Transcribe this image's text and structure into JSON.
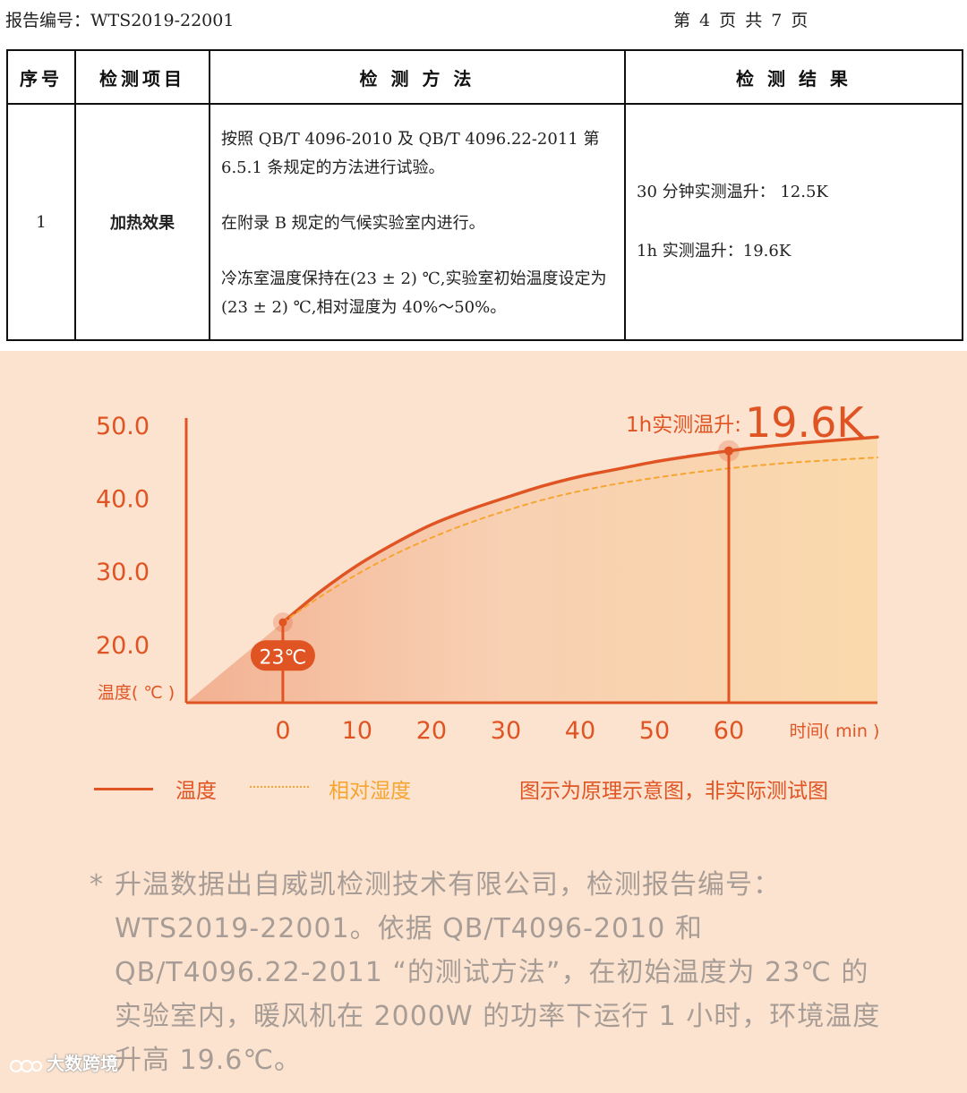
{
  "report": {
    "report_number": "报告编号：WTS2019-22001",
    "page_info": "第 4 页 共 7 页",
    "columns": [
      "序号",
      "检测项目",
      "检 测 方 法",
      "检 测 结 果"
    ],
    "row": {
      "no": "1",
      "item": "加热效果",
      "method": [
        "按照 QB/T 4096-2010 及 QB/T 4096.22-2011 第 6.5.1 条规定的方法进行试验。",
        "在附录 B 规定的气候实验室内进行。",
        "冷冻室温度保持在(23 ± 2) ℃,实验室初始温度设定为(23 ± 2) ℃,相对湿度为 40%～50%。"
      ],
      "results": [
        "30 分钟实测温升： 12.5K",
        "1h 实测温升：19.6K"
      ]
    }
  },
  "chart_data": {
    "type": "line",
    "xlabel": "时间( min )",
    "ylabel": "温度( ℃ )",
    "x_ticks": [
      0,
      10,
      20,
      30,
      40,
      50,
      60
    ],
    "y_ticks": [
      20.0,
      30.0,
      40.0,
      50.0
    ],
    "y_tick_labels": [
      "20.0",
      "30.0",
      "40.0",
      "50.0"
    ],
    "xlim": [
      -13,
      80
    ],
    "ylim": [
      12,
      51
    ],
    "series": [
      {
        "name": "温度",
        "style": "solid",
        "color": "#e05423",
        "x": [
          0,
          5,
          10,
          15,
          20,
          25,
          30,
          35,
          40,
          45,
          50,
          55,
          60,
          65,
          70,
          80
        ],
        "y": [
          23,
          27.2,
          30.8,
          33.8,
          36.4,
          38.4,
          40.1,
          41.7,
          43.0,
          44.0,
          45.0,
          45.8,
          46.5,
          47.1,
          47.6,
          48.4
        ]
      },
      {
        "name": "相对湿度",
        "style": "dotted",
        "color": "#f6a531",
        "x": [
          0,
          5,
          10,
          15,
          20,
          25,
          30,
          35,
          40,
          45,
          50,
          55,
          60,
          65,
          70,
          80
        ],
        "y": [
          23,
          26.5,
          29.6,
          32.3,
          34.6,
          36.6,
          38.3,
          39.8,
          41.0,
          42.0,
          42.8,
          43.5,
          44.1,
          44.6,
          45.0,
          45.6
        ]
      }
    ],
    "annotations": {
      "start": {
        "x": 0,
        "y": 23,
        "label": "23℃"
      },
      "peak": {
        "x": 60,
        "y": 46.5,
        "prefix": "1h实测温升:",
        "value": "19.6K"
      }
    }
  },
  "legend": {
    "temp_label": "温度",
    "humidity_label": "相对湿度",
    "note": "图示为原理示意图，非实际测试图"
  },
  "footnote": {
    "star": "*",
    "text": "升温数据出自威凯检测技术有限公司，检测报告编号：WTS2019-22001。依据 QB/T4096-2010 和 QB/T4096.22-2011 “的测试方法”，在初始温度为 23℃ 的实验室内，暖风机在 2000W 的功率下运行 1 小时，环境温度升高 19.6℃。"
  },
  "watermark": {
    "text": "大数跨境"
  },
  "colors": {
    "accent": "#e05423",
    "secondary": "#f6a531",
    "panel_bg": "#fbe3cf",
    "footnote": "#a89d96"
  }
}
